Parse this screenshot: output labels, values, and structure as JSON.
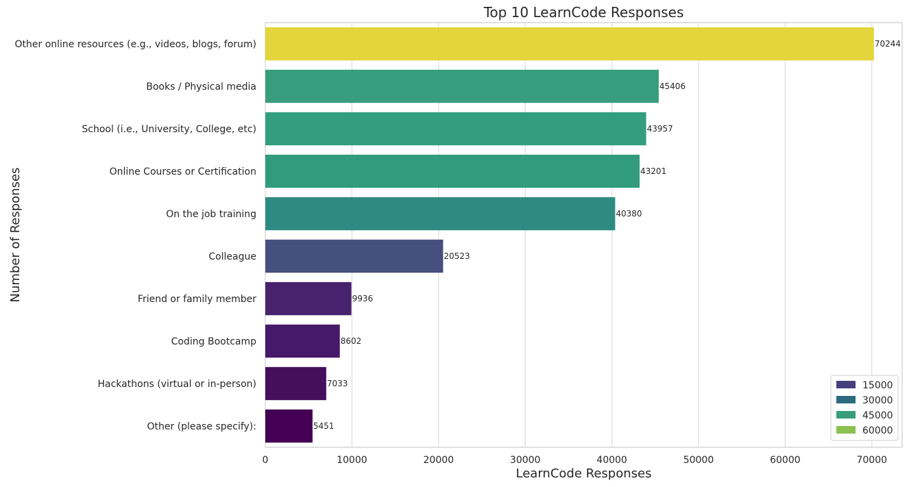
{
  "chart_data": {
    "type": "bar",
    "orientation": "horizontal",
    "title": "Top 10 LearnCode Responses",
    "xlabel": "LearnCode Responses",
    "ylabel": "Number of Responses",
    "xlim": [
      0,
      73500
    ],
    "xticks": [
      0,
      10000,
      20000,
      30000,
      40000,
      50000,
      60000,
      70000
    ],
    "grid": true,
    "legend_placement": "bottom-right",
    "categories": [
      "Other online resources (e.g., videos, blogs, forum)",
      "Books / Physical media",
      "School (i.e., University, College, etc)",
      "Online Courses or Certification",
      "On the job training",
      "Colleague",
      "Friend or family member",
      "Coding Bootcamp",
      "Hackathons (virtual or in-person)",
      "Other (please specify):"
    ],
    "values": [
      70244,
      45406,
      43957,
      43201,
      40380,
      20523,
      9936,
      8602,
      7033,
      5451
    ],
    "bar_colors": [
      "#e3d53c",
      "#389d7c",
      "#339e7f",
      "#319b7e",
      "#2e8b81",
      "#45507f",
      "#48226d",
      "#47196a",
      "#450f5e",
      "#430054"
    ],
    "legend": [
      {
        "label": "15000",
        "color": "#463f7e"
      },
      {
        "label": "30000",
        "color": "#2e6a7f"
      },
      {
        "label": "45000",
        "color": "#389d7c"
      },
      {
        "label": "60000",
        "color": "#8ac14f"
      }
    ]
  }
}
